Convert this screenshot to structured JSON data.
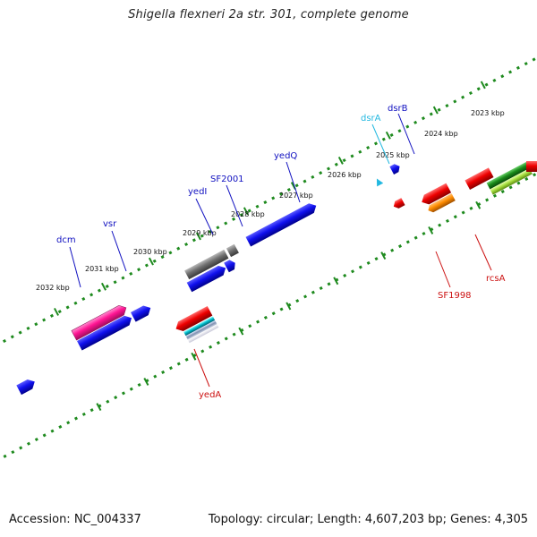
{
  "title": "Shigella flexneri 2a str. 301, complete genome",
  "accession": "Accession: NC_004337",
  "summary": "Topology: circular; Length: 4,607,203 bp; Genes: 4,305",
  "colors": {
    "backbone": "#8a8a8a",
    "ticks": "#1e8a1e",
    "plus_label": "#1010c0",
    "minus_label": "#cc1111",
    "rna_label": "#22b8e0"
  },
  "tick_labels": [
    "2032 kbp",
    "2031 kbp",
    "2030 kbp",
    "2029 kbp",
    "2028 kbp",
    "2027 kbp",
    "2026 kbp",
    "2025 kbp",
    "2024 kbp",
    "2023 kbp"
  ],
  "plus_labels": [
    "dcm",
    "vsr",
    "yedI",
    "SF2001",
    "yedQ",
    "dsrA",
    "dsrB"
  ],
  "minus_labels": [
    "yedA",
    "SF1998",
    "rcsA"
  ]
}
